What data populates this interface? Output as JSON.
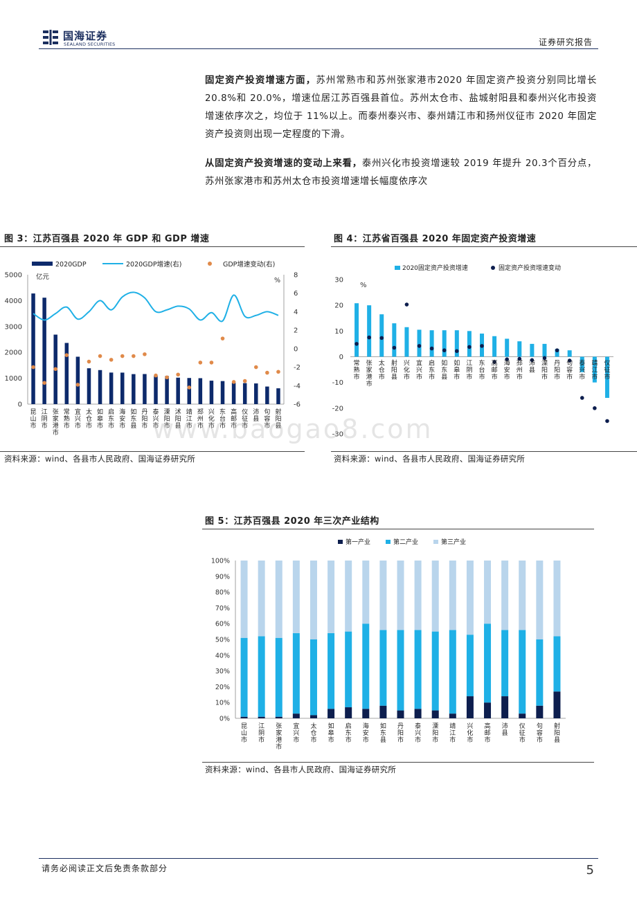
{
  "header": {
    "logo_cn": "国海证券",
    "logo_en": "SEALAND SECURITIES",
    "report_type": "证券研究报告"
  },
  "paragraphs": [
    {
      "lead": "固定资产投资增速方面，",
      "text": "苏州常熟市和苏州张家港市2020 年固定资产投资分别同比增长 20.8%和 20.0%，增速位居江苏百强县首位。苏州太仓市、盐城射阳县和泰州兴化市投资增速依序次之，均位于 11%以上。而泰州泰兴市、泰州靖江市和扬州仪征市 2020 年固定资产投资则出现一定程度的下滑。"
    },
    {
      "lead": "从固定资产投资增速的变动上来看，",
      "text": "泰州兴化市投资增速较 2019 年提升 20.3个百分点，苏州张家港市和苏州太仓市投资增速增长幅度依序次"
    }
  ],
  "figures": {
    "fig3": {
      "title": "图 3：江苏百强县 2020 年 GDP 和 GDP 增速",
      "source": "资料来源：wind、各县市人民政府、国海证券研究所"
    },
    "fig4": {
      "title": "图 4：江苏省百强县 2020 年固定资产投资增速",
      "source": "资料来源：wind、各县市人民政府、国海证券研究所"
    },
    "fig5": {
      "title": "图 5：江苏百强县 2020 年三次产业结构",
      "source": "资料来源：wind、各县市人民政府、国海证券研究所"
    }
  },
  "chart_data": [
    {
      "type": "bar",
      "categories": [
        "昆山市",
        "江阴市",
        "张家港市",
        "常熟市",
        "宜兴市",
        "太仓市",
        "如皋市",
        "启东市",
        "海安市",
        "如东县",
        "丹阳市",
        "泰兴市",
        "溧阳市",
        "沭阳县",
        "靖江市",
        "邳州市",
        "兴化市",
        "东台市",
        "高邮市",
        "仪征市",
        "沛县",
        "句容市",
        "射阳县"
      ],
      "series": [
        {
          "name": "2020GDP",
          "type": "bar",
          "axis": "left",
          "color": "#0d2a6b",
          "values": [
            4276,
            4113,
            2686,
            2365,
            1832,
            1386,
            1316,
            1220,
            1218,
            1160,
            1163,
            1093,
            1086,
            1023,
            1010,
            1003,
            907,
            891,
            823,
            812,
            800,
            680,
            612
          ]
        },
        {
          "name": "2020GDP增速(右)",
          "type": "line",
          "axis": "right",
          "color": "#1fb0e6",
          "values": [
            3.8,
            3.1,
            3.8,
            4.5,
            3.2,
            4.0,
            5.2,
            4.2,
            5.6,
            6.1,
            5.5,
            4.0,
            4.2,
            4.6,
            4.3,
            3.1,
            3.9,
            3.0,
            5.8,
            3.5,
            3.6,
            4.0,
            3.6
          ]
        },
        {
          "name": "GDP增速变动(右)",
          "type": "scatter",
          "axis": "right",
          "color": "#e08a4a",
          "values": [
            -2.0,
            -3.7,
            -2.2,
            -0.7,
            -3.9,
            -1.4,
            -0.8,
            -1.2,
            -0.8,
            -0.8,
            -0.6,
            -2.9,
            -3.1,
            -2.8,
            -4.2,
            -1.5,
            -1.5,
            1.1,
            -3.6,
            -3.5,
            -2.0,
            -2.6,
            -2.5
          ]
        }
      ],
      "ylabel_left": "亿元",
      "ylabel_right": "%",
      "ylim_left": [
        0,
        5000
      ],
      "ylim_right": [
        -6,
        8
      ],
      "yticks_left": [
        "0",
        "1000",
        "2000",
        "3000",
        "4000",
        "5000"
      ],
      "yticks_right": [
        "-6",
        "-4",
        "-2",
        "0",
        "2",
        "4",
        "6",
        "8"
      ],
      "legend": "top"
    },
    {
      "type": "bar",
      "categories": [
        "常熟市",
        "张家港市",
        "太仓市",
        "射阳县",
        "兴化市",
        "宜兴市",
        "启东市",
        "如东县",
        "如皋市",
        "江阴市",
        "东台市",
        "高邮市",
        "海安市",
        "邳州市",
        "沛县",
        "溧阳市",
        "丹阳市",
        "句容市",
        "泰兴市",
        "靖江市",
        "仪征市"
      ],
      "series": [
        {
          "name": "2020固定资产投资增速",
          "type": "bar",
          "color": "#1fb0e6",
          "values": [
            20.8,
            20.0,
            16.5,
            13.0,
            11.5,
            10.5,
            10.3,
            10.3,
            10.3,
            10.0,
            9.0,
            8.0,
            7.0,
            6.0,
            5.0,
            5.0,
            3.0,
            2.5,
            -6.0,
            -10.0,
            -16.0
          ]
        },
        {
          "name": "固定资产投资增速变动",
          "type": "scatter",
          "color": "#0d1e4e",
          "values": [
            5.0,
            7.5,
            7.3,
            3.5,
            20.3,
            4.2,
            3.2,
            2.5,
            2.2,
            3.8,
            4.2,
            -2.0,
            -1.0,
            -0.8,
            -1.3,
            -0.5,
            2.5,
            -1.5,
            -16.0,
            -20.0,
            -25.0
          ]
        }
      ],
      "ylabel": "%",
      "ylim": [
        -30,
        30
      ],
      "yticks": [
        "-30",
        "-20",
        "-10",
        "0",
        "10",
        "20",
        "30"
      ],
      "legend": "top"
    },
    {
      "type": "bar",
      "stacked": true,
      "categories": [
        "昆山市",
        "江阴市",
        "张家港市",
        "宜兴市",
        "太仓市",
        "如皋市",
        "启东市",
        "海安市",
        "如东县",
        "丹阳市",
        "泰兴市",
        "溧阳市",
        "靖江市",
        "兴化市",
        "高邮市",
        "沛县",
        "仪征市",
        "句容市",
        "射阳县"
      ],
      "series": [
        {
          "name": "第一产业",
          "color": "#0d1e4e",
          "values": [
            1,
            1,
            1,
            3,
            2,
            6,
            7,
            6,
            8,
            5,
            6,
            5,
            3,
            14,
            10,
            14,
            3,
            8,
            17
          ]
        },
        {
          "name": "第二产业",
          "color": "#1fb0e6",
          "values": [
            50,
            51,
            50,
            51,
            48,
            48,
            48,
            54,
            48,
            51,
            50,
            50,
            53,
            39,
            50,
            42,
            53,
            42,
            35
          ]
        },
        {
          "name": "第三产业",
          "color": "#b9d5ec",
          "values": [
            49,
            48,
            49,
            46,
            50,
            46,
            45,
            40,
            44,
            44,
            44,
            45,
            44,
            47,
            40,
            44,
            44,
            50,
            48
          ]
        }
      ],
      "ylim": [
        0,
        100
      ],
      "yticks": [
        "0%",
        "10%",
        "20%",
        "30%",
        "40%",
        "50%",
        "60%",
        "70%",
        "80%",
        "90%",
        "100%"
      ],
      "legend": "top"
    }
  ],
  "watermark": "www.baogao8.com",
  "footer": {
    "disclaimer": "请务必阅读正文后免责条款部分",
    "page_number": "5"
  }
}
